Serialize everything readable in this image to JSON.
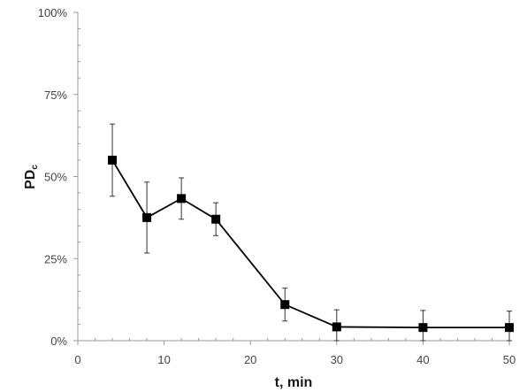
{
  "chart_data": {
    "type": "line",
    "xlabel": "t, min",
    "ylabel_main": "PD",
    "ylabel_sub": "c",
    "xlim": [
      0,
      50
    ],
    "ylim": [
      0,
      100
    ],
    "x_ticks": [
      0,
      10,
      20,
      30,
      40,
      50
    ],
    "x_tick_labels": [
      "0",
      "10",
      "20",
      "30",
      "40",
      "50"
    ],
    "y_ticks": [
      0,
      25,
      50,
      75,
      100
    ],
    "y_tick_labels": [
      "0%",
      "25%",
      "50%",
      "75%",
      "100%"
    ],
    "grid": false,
    "series": [
      {
        "marker": "square",
        "color": "#000000",
        "x": [
          4,
          8,
          12,
          16,
          24,
          30,
          40,
          50
        ],
        "y": [
          55,
          37.5,
          43.3,
          37,
          11,
          4.2,
          4,
          4
        ],
        "error": [
          11,
          10.8,
          6.3,
          5,
          5,
          5.2,
          5.2,
          5
        ]
      }
    ]
  }
}
